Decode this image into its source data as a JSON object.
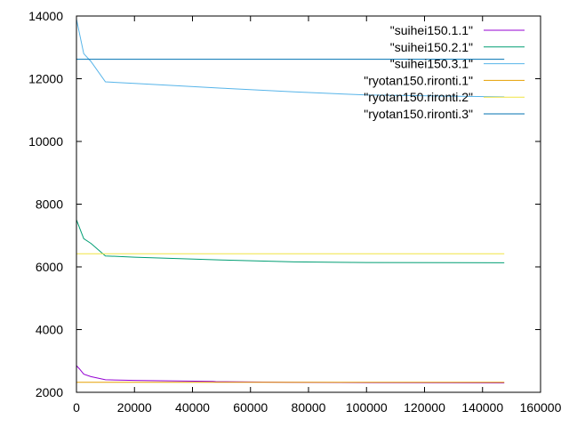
{
  "chart_data": {
    "type": "line",
    "title": "",
    "xlabel": "",
    "ylabel": "",
    "xlim": [
      0,
      160000
    ],
    "ylim": [
      2000,
      14000
    ],
    "xticks": [
      0,
      20000,
      40000,
      60000,
      80000,
      100000,
      120000,
      140000,
      160000
    ],
    "yticks": [
      2000,
      4000,
      6000,
      8000,
      10000,
      12000,
      14000
    ],
    "grid": false,
    "legend_position": "top-right",
    "series": [
      {
        "name": "\"suihei150.1.1\"",
        "color": "#9400d3",
        "x": [
          0,
          1000,
          2500,
          5000,
          10000,
          20000,
          47000,
          48000,
          73000,
          100000,
          147500
        ],
        "y": [
          2850,
          2750,
          2580,
          2500,
          2400,
          2380,
          2350,
          2340,
          2320,
          2310,
          2300
        ]
      },
      {
        "name": "\"suihei150.2.1\"",
        "color": "#009e73",
        "x": [
          0,
          2500,
          5000,
          10000,
          20000,
          50000,
          75000,
          100000,
          147500
        ],
        "y": [
          7500,
          6900,
          6750,
          6350,
          6310,
          6220,
          6160,
          6140,
          6130
        ]
      },
      {
        "name": "\"suihei150.3.1\"",
        "color": "#56b4e9",
        "x": [
          0,
          2500,
          5000,
          10000,
          20000,
          50000,
          75000,
          100000,
          147500
        ],
        "y": [
          13900,
          12800,
          12550,
          11900,
          11850,
          11700,
          11580,
          11480,
          11420
        ]
      },
      {
        "name": "\"ryotan150.rironti.1\"",
        "color": "#e69f00",
        "x": [
          0,
          147500
        ],
        "y": [
          2320,
          2320
        ]
      },
      {
        "name": "\"ryotan150.rironti.2\"",
        "color": "#f0e442",
        "x": [
          0,
          147500
        ],
        "y": [
          6420,
          6420
        ]
      },
      {
        "name": "\"ryotan150.rironti.3\"",
        "color": "#0072b2",
        "x": [
          0,
          147500
        ],
        "y": [
          12620,
          12620
        ]
      }
    ]
  }
}
